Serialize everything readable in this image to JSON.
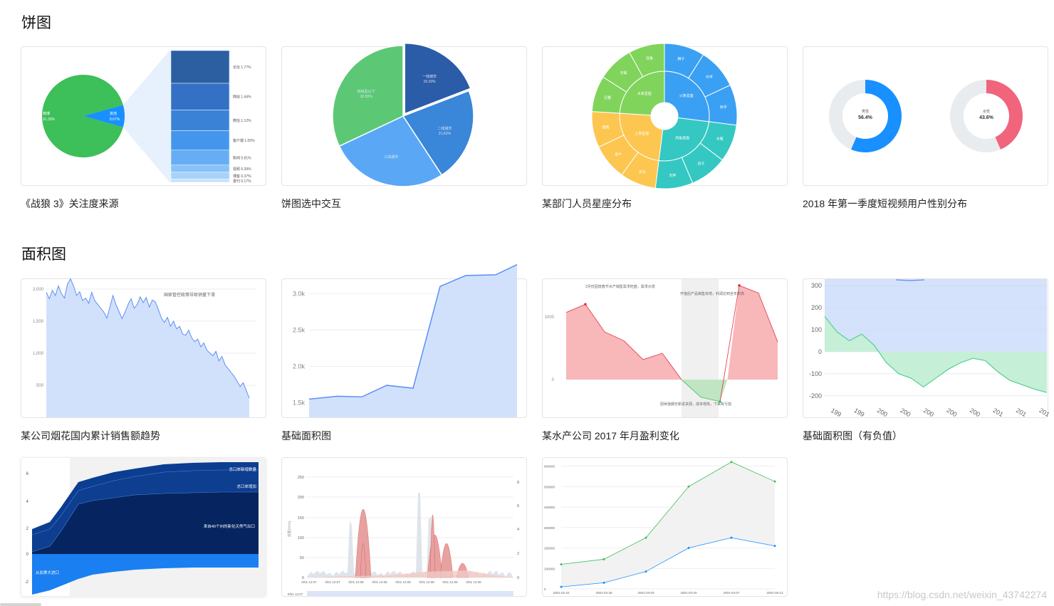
{
  "sections": {
    "pie_title": "饼图",
    "area_title": "面积图"
  },
  "captions": {
    "c1": "《战狼 3》关注度来源",
    "c2": "饼图选中交互",
    "c3": "某部门人员星座分布",
    "c4": "2018 年第一季度短视频用户性别分布",
    "c5": "某公司烟花国内累计销售额趋势",
    "c6": "基础面积图",
    "c7": "某水产公司 2017 年月盈利变化",
    "c8": "基础面积图（有负值）"
  },
  "watermark": "https://blog.csdn.net/weixin_43742274",
  "colors": {
    "green": "#3dbf5a",
    "blue_dark": "#2b5ca8",
    "blue_mid": "#3a86d9",
    "blue_light": "#5aa8f5",
    "area_blue": "#d2e1fb",
    "line_blue": "#5b8ff9",
    "red_fill": "#f8b7b9",
    "red_line": "#e3323b",
    "green_fill": "#bfe5c3",
    "pink": "#f0647c"
  },
  "chart_data": [
    {
      "id": "pie-wolf3",
      "type": "pie",
      "main_slices": [
        {
          "label": "微博",
          "percent_text": "91.33%",
          "value": 91.33
        },
        {
          "label": "其他",
          "percent_text": "8.67%",
          "value": 8.67
        }
      ],
      "breakdown": [
        {
          "label": "论坛 1.77%",
          "value": 1.77
        },
        {
          "label": "网站 1.44%",
          "value": 1.44
        },
        {
          "label": "微信 1.12%",
          "value": 1.12
        },
        {
          "label": "客户端 1.05%",
          "value": 1.05
        },
        {
          "label": "新闻 0.81%",
          "value": 0.81
        },
        {
          "label": "视频 0.39%",
          "value": 0.39
        },
        {
          "label": "博客 0.37%",
          "value": 0.37
        },
        {
          "label": "报刊 0.17%",
          "value": 0.17
        }
      ]
    },
    {
      "id": "pie-select",
      "type": "pie",
      "slices": [
        {
          "label": "一线城市",
          "percent_text": "19.16%",
          "value": 19.16,
          "color": "#2b5ca8"
        },
        {
          "label": "二线城市",
          "percent_text": "21.61%",
          "value": 21.61,
          "color": "#3a86d9"
        },
        {
          "label": "三线城市",
          "percent_text": "",
          "value": 27.23,
          "color": "#5aa8f5"
        },
        {
          "label": "四线及以下",
          "percent_text": "32.00%",
          "value": 32.0,
          "color": "#5cc875"
        }
      ]
    },
    {
      "id": "sunburst-constellation",
      "type": "pie",
      "inner": [
        {
          "label": "火象星座",
          "value": 27,
          "color": "#3aa0f3"
        },
        {
          "label": "风象星座",
          "value": 25,
          "color": "#35c8c2"
        },
        {
          "label": "土象星座",
          "value": 24,
          "color": "#fcc650"
        },
        {
          "label": "水象星座",
          "value": 24,
          "color": "#80d45c"
        }
      ],
      "outer_labels": [
        "狮子",
        "白羊",
        "射手",
        "水瓶",
        "双子",
        "天秤",
        "处女",
        "金牛",
        "摩羯",
        "巨蟹",
        "天蝎",
        "双鱼"
      ]
    },
    {
      "id": "gender-donuts",
      "type": "pie",
      "donuts": [
        {
          "label": "男性",
          "percent_text": "56.4%",
          "value": 56.4,
          "color": "#1890ff"
        },
        {
          "label": "女性",
          "percent_text": "43.6%",
          "value": 43.6,
          "color": "#f0647c"
        }
      ]
    },
    {
      "id": "fireworks-sales",
      "type": "area",
      "yticks": [
        "2,000",
        "1,500",
        "1,000",
        "500"
      ],
      "y": [
        1950,
        1850,
        1980,
        1900,
        2050,
        1930,
        1860,
        2080,
        2160,
        2050,
        1900,
        1960,
        1820,
        1860,
        1780,
        1950,
        1820,
        1760,
        1700,
        1640,
        1550,
        1720,
        1900,
        1760,
        1650,
        1540,
        1640,
        1760,
        1850,
        1700,
        1760,
        1880,
        1790,
        1870,
        1720,
        1830,
        1800,
        1680,
        1550,
        1480,
        1560,
        1420,
        1500,
        1380,
        1420,
        1300,
        1280,
        1360,
        1240,
        1180,
        1220,
        1100,
        1160,
        1050,
        1000,
        960,
        1030,
        880,
        950,
        820,
        760,
        700,
        640,
        560,
        480,
        540,
        420,
        300
      ],
      "ylim": [
        0,
        2100
      ],
      "annotation": "国家管控政策导致销量下滑"
    },
    {
      "id": "basic-area",
      "type": "area",
      "yticks": [
        "3.0k",
        "2.5k",
        "2.0k",
        "1.5k"
      ],
      "y": [
        1550,
        1590,
        1580,
        1740,
        1700,
        3100,
        3250,
        3260,
        3400
      ],
      "ylim": [
        1300,
        3200
      ]
    },
    {
      "id": "aquatic-profit",
      "type": "area",
      "yticks": [
        "1000",
        "0"
      ],
      "y": [
        1070,
        1200,
        760,
        620,
        320,
        420,
        0,
        -280,
        -350,
        1500,
        1380,
        600
      ],
      "ylim": [
        -600,
        1600
      ],
      "annotations": [
        "2月份因逢春节水产销售需求旺盛，需求大增",
        "开渔后产品销售双增，利润达到全年新高",
        "因休渔期无新进货源，成本增高，下来有亏损"
      ]
    },
    {
      "id": "negative-area",
      "type": "area",
      "yticks": [
        "300",
        "200",
        "100",
        "0",
        "-100",
        "-200"
      ],
      "xticks": [
        "199",
        "199",
        "200",
        "200",
        "200",
        "200",
        "200",
        "201",
        "201",
        "201"
      ],
      "ylim": [
        -220,
        310
      ],
      "y": [
        160,
        90,
        50,
        80,
        30,
        -50,
        -100,
        -120,
        -160,
        -120,
        -80,
        -50,
        -30,
        -40,
        -90,
        -130,
        -150,
        -170,
        -185
      ],
      "y_upper_line": [
        360,
        350,
        340,
        360
      ]
    },
    {
      "id": "stacked-area",
      "type": "area",
      "yticks": [
        "6",
        "4",
        "2",
        "0",
        "-2"
      ],
      "series": [
        {
          "name": "总口岸新增数量",
          "color": "#0b3d91"
        },
        {
          "name": "总口岸增加",
          "color": "#0d3b8a"
        },
        {
          "name": "来自40个州的新化天然气出口",
          "color": "#062560"
        },
        {
          "name": "从加拿大进口",
          "color": "#1a7ff0"
        }
      ]
    },
    {
      "id": "rainfall-area",
      "type": "area",
      "left_yticks": [
        "250",
        "200",
        "150",
        "100",
        "50",
        "0"
      ],
      "right_yticks": [
        "8",
        "6",
        "4",
        "2",
        "0"
      ],
      "xticks": [
        "0/01 12:07",
        "0/01 12:07",
        "0/01 12:08",
        "0/01 12:08",
        "0/01 12:08",
        "0/01 12:08",
        "0/01 12:08",
        "0/01 12:09"
      ],
      "ylabel": "流量(m³/s)",
      "bottom_label": "0/01 12:07"
    },
    {
      "id": "range-area",
      "type": "area",
      "yticks": [
        "600000",
        "500000",
        "400000",
        "300000",
        "200000",
        "100000",
        "0"
      ],
      "xticks": [
        "2001-02-22",
        "2001-03-28",
        "2001-03-03",
        "2001-03-20",
        "2001-04-07",
        "2001-06-13"
      ],
      "upper": [
        120000,
        145000,
        250000,
        500000,
        620000,
        525000
      ],
      "lower": [
        10000,
        30000,
        85000,
        200000,
        250000,
        210000
      ],
      "ylim": [
        0,
        640000
      ]
    }
  ]
}
